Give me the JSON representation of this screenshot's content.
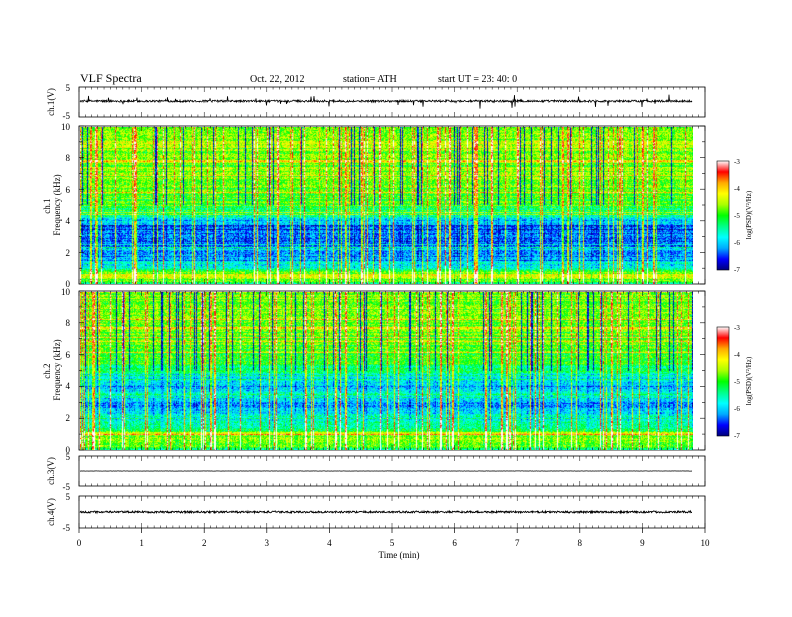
{
  "header": {
    "title": "VLF  Spectra",
    "date": "Oct. 22, 2012",
    "station": "station= ATH",
    "start": "start  UT =   23: 40: 0"
  },
  "chart_data": [
    {
      "type": "line",
      "panel": "ch1-waveform",
      "ylabel": "ch.1(V)",
      "ylim": [
        -5,
        5
      ],
      "yticks": [
        "5",
        "-5"
      ],
      "xlim": [
        0,
        10
      ],
      "x_data_end": 9.8,
      "baseline": 0.3,
      "noise_amplitude": 0.35,
      "spike_amplitude": 2.5
    },
    {
      "type": "heatmap",
      "panel": "ch1-spectrogram",
      "ylabel": "ch.1\nFrequency  (kHz)",
      "ylim": [
        0,
        10
      ],
      "yticks": [
        "0",
        "2",
        "4",
        "6",
        "8",
        "10"
      ],
      "xlim": [
        0,
        10
      ],
      "x_data_end": 9.8,
      "colorbar": {
        "label": "log(PSD)(V²/Hz)",
        "range": [
          -7,
          -3
        ],
        "ticks": [
          "-3",
          "-4",
          "-5",
          "-6",
          "-7"
        ]
      },
      "profile_khz_logpsd": [
        [
          0,
          -5.3
        ],
        [
          0.5,
          -4.2
        ],
        [
          0.8,
          -5.2
        ],
        [
          1.0,
          -5.5
        ],
        [
          1.5,
          -6.1
        ],
        [
          2.0,
          -6.2
        ],
        [
          3.0,
          -6.3
        ],
        [
          3.6,
          -6.5
        ],
        [
          4.0,
          -6.0
        ],
        [
          4.5,
          -5.2
        ],
        [
          5.0,
          -5.0
        ],
        [
          6.0,
          -4.9
        ],
        [
          7.0,
          -4.8
        ],
        [
          8.0,
          -4.7
        ],
        [
          9.0,
          -4.6
        ],
        [
          10.0,
          -4.6
        ]
      ]
    },
    {
      "type": "heatmap",
      "panel": "ch2-spectrogram",
      "ylabel": "ch.2\nFrequency  (kHz)",
      "ylim": [
        0,
        10
      ],
      "yticks": [
        "0",
        "2",
        "4",
        "6",
        "8",
        "10"
      ],
      "xlim": [
        0,
        10
      ],
      "x_data_end": 9.8,
      "colorbar": {
        "label": "log(PSD)(V²/Hz)",
        "range": [
          -7,
          -3
        ],
        "ticks": [
          "-3",
          "-4",
          "-5",
          "-6",
          "-7"
        ]
      },
      "profile_khz_logpsd": [
        [
          0,
          -5.3
        ],
        [
          0.5,
          -4.6
        ],
        [
          0.8,
          -5.0
        ],
        [
          1.0,
          -4.3
        ],
        [
          1.3,
          -5.3
        ],
        [
          2.0,
          -5.6
        ],
        [
          3.0,
          -6.1
        ],
        [
          3.5,
          -5.4
        ],
        [
          4.0,
          -6.2
        ],
        [
          4.5,
          -6.0
        ],
        [
          5.0,
          -5.3
        ],
        [
          6.0,
          -5.0
        ],
        [
          7.0,
          -4.9
        ],
        [
          8.0,
          -4.8
        ],
        [
          9.0,
          -4.7
        ],
        [
          10.0,
          -4.7
        ]
      ]
    },
    {
      "type": "line",
      "panel": "ch3-waveform",
      "ylabel": "ch.3(V)",
      "ylim": [
        -5,
        5
      ],
      "yticks": [
        "5",
        "-5"
      ],
      "xlim": [
        0,
        10
      ],
      "x_data_end": 9.8,
      "baseline": 0.0,
      "noise_amplitude": 0.05
    },
    {
      "type": "line",
      "panel": "ch4-waveform",
      "ylabel": "ch.4(V)",
      "ylim": [
        -5,
        5
      ],
      "yticks": [
        "5",
        "-5"
      ],
      "xlim": [
        0,
        10
      ],
      "x_data_end": 9.8,
      "baseline": 0.0,
      "noise_amplitude": 0.3
    }
  ],
  "xaxis": {
    "label": "Time  (min)",
    "ticks": [
      "0",
      "1",
      "2",
      "3",
      "4",
      "5",
      "6",
      "7",
      "8",
      "9",
      "10"
    ]
  },
  "colors": {
    "trace": "#000000",
    "colormap": [
      "#00007a",
      "#0000ff",
      "#00aaff",
      "#00ffff",
      "#00ff88",
      "#00ff00",
      "#aaff00",
      "#ffff00",
      "#ffaa00",
      "#ff0000",
      "#ffffff"
    ]
  }
}
